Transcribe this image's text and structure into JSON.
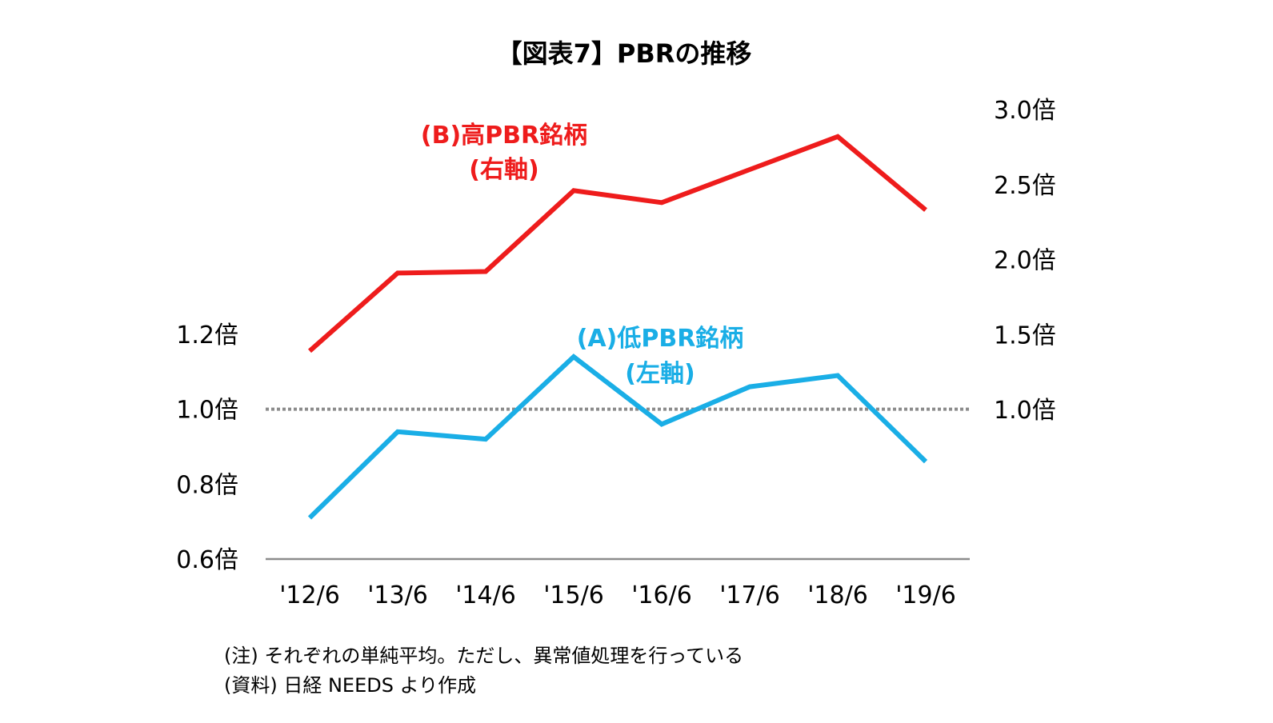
{
  "chart_data": {
    "type": "line",
    "title": "【図表7】PBRの推移",
    "categories": [
      "'12/6",
      "'13/6",
      "'14/6",
      "'15/6",
      "'16/6",
      "'17/6",
      "'18/6",
      "'19/6"
    ],
    "series": [
      {
        "name": "(B)高PBR銘柄",
        "axis_note": "(右軸)",
        "axis": "right",
        "color": "#ee1c1c",
        "values": [
          1.39,
          1.91,
          1.92,
          2.46,
          2.38,
          2.6,
          2.82,
          2.33
        ]
      },
      {
        "name": "(A)低PBR銘柄",
        "axis_note": "(左軸)",
        "axis": "left",
        "color": "#1aaee6",
        "values": [
          0.71,
          0.94,
          0.92,
          1.14,
          0.96,
          1.06,
          1.09,
          0.86
        ]
      }
    ],
    "y_left": {
      "min": 0.6,
      "max": 1.2,
      "ticks": [
        "0.6倍",
        "0.8倍",
        "1.0倍",
        "1.2倍"
      ],
      "tick_values": [
        0.6,
        0.8,
        1.0,
        1.2
      ]
    },
    "y_right": {
      "min": 0.5,
      "max": 3.0,
      "ticks": [
        "1.0倍",
        "1.5倍",
        "2.0倍",
        "2.5倍",
        "3.0倍"
      ],
      "tick_values": [
        1.0,
        1.5,
        2.0,
        2.5,
        3.0
      ]
    },
    "reference_line": {
      "value": 1.0,
      "style": "dotted",
      "color": "#8c8c8c"
    },
    "grid": false
  },
  "notes": [
    "(注) それぞれの単純平均。ただし、異常値処理を行っている",
    "(資料) 日経 NEEDS より作成"
  ]
}
